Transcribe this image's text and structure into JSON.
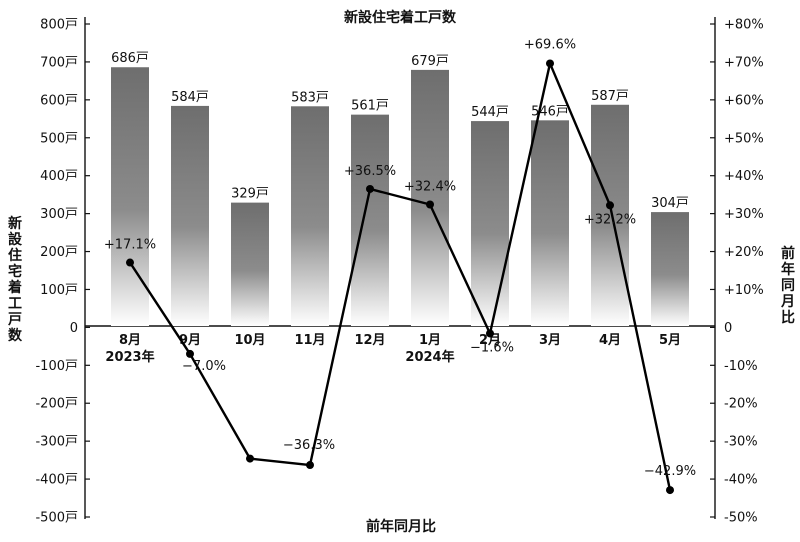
{
  "chart_data": {
    "type": "bar+line",
    "title": "新設住宅着工戸数",
    "xlabel": "前年同月比",
    "ylabel_left": "新設住宅着工戸数",
    "ylabel_right": "前年同月比",
    "categories": [
      "8月",
      "9月",
      "10月",
      "11月",
      "12月",
      "1月",
      "2月",
      "3月",
      "4月",
      "5月"
    ],
    "year_labels": [
      "2023年",
      "",
      "",
      "",
      "",
      "2024年",
      "",
      "",
      "",
      ""
    ],
    "bars": {
      "values": [
        686,
        584,
        329,
        583,
        561,
        679,
        544,
        546,
        587,
        304
      ],
      "labels": [
        "686戸",
        "584戸",
        "329戸",
        "583戸",
        "561戸",
        "679戸",
        "544戸",
        "546戸",
        "587戸",
        "304戸"
      ],
      "ylim": [
        -500,
        800
      ]
    },
    "line": {
      "values": [
        17.1,
        -7.0,
        -34.6,
        -36.3,
        36.5,
        32.4,
        -1.6,
        69.6,
        32.2,
        -42.9
      ],
      "labels": [
        "+17.1%",
        "−7.0%",
        "",
        "−36.3%",
        "+36.5%",
        "+32.4%",
        "−1.6%",
        "+69.6%",
        "+32.2%",
        "−42.9%"
      ],
      "ylim": [
        -50,
        80
      ]
    },
    "left_ticks": [
      "800戸",
      "700戸",
      "600戸",
      "500戸",
      "400戸",
      "300戸",
      "200戸",
      "100戸",
      "0",
      "-100戸",
      "-200戸",
      "-300戸",
      "-400戸",
      "-500戸"
    ],
    "right_ticks": [
      "+80%",
      "+70%",
      "+60%",
      "+50%",
      "+40%",
      "+30%",
      "+20%",
      "+10%",
      "0",
      "-10%",
      "-20%",
      "-30%",
      "-40%",
      "-50%"
    ],
    "colors": {
      "bar_top": "#6e6e6e",
      "bar_bottom": "#ffffff",
      "line": "#000000"
    }
  }
}
